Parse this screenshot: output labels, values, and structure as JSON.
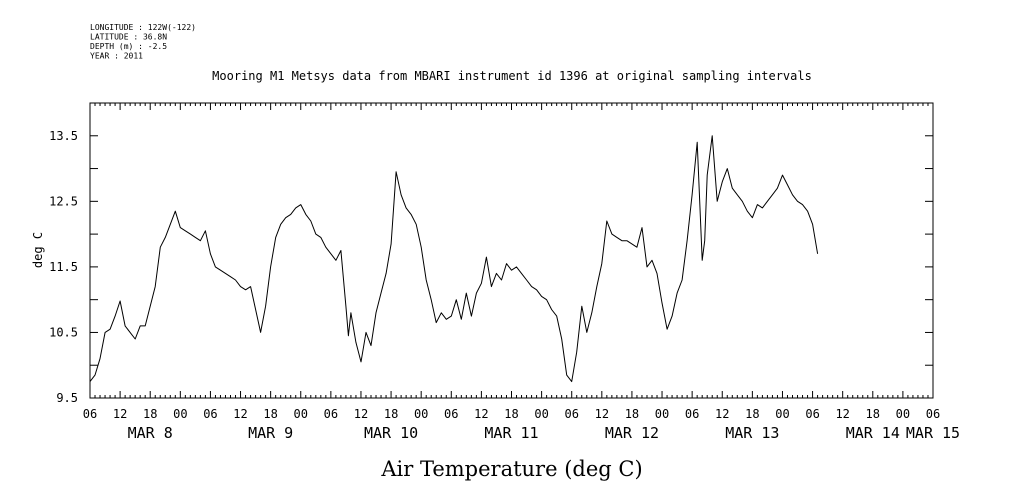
{
  "header": {
    "meta_lines": [
      "LONGITUDE : 122W(-122)",
      "LATITUDE : 36.8N",
      "DEPTH (m) : -2.5",
      "YEAR : 2011"
    ],
    "title": "Mooring M1 Metsys data from MBARI instrument id 1396 at original sampling intervals",
    "xlabel": "Air Temperature (deg C)"
  },
  "chart_data": {
    "type": "line",
    "title": "Mooring M1 Metsys data from MBARI instrument id 1396 at original sampling intervals",
    "xlabel": "Air Temperature (deg C)",
    "ylabel": "deg C",
    "x_unit": "hours since MAR 8 00:00",
    "xlim": [
      -18,
      150
    ],
    "ylim": [
      9.5,
      14.0
    ],
    "y_ticks": [
      "9.5",
      "10.5",
      "11.5",
      "12.5",
      "13.5"
    ],
    "x_hour_ticks": [
      {
        "x": -18,
        "label": "06"
      },
      {
        "x": -12,
        "label": "12"
      },
      {
        "x": -6,
        "label": "18"
      },
      {
        "x": 0,
        "label": "00"
      },
      {
        "x": 6,
        "label": "06"
      },
      {
        "x": 12,
        "label": "12"
      },
      {
        "x": 18,
        "label": "18"
      },
      {
        "x": 24,
        "label": "00"
      },
      {
        "x": 30,
        "label": "06"
      },
      {
        "x": 36,
        "label": "12"
      },
      {
        "x": 42,
        "label": "18"
      },
      {
        "x": 48,
        "label": "00"
      },
      {
        "x": 54,
        "label": "06"
      },
      {
        "x": 60,
        "label": "12"
      },
      {
        "x": 66,
        "label": "18"
      },
      {
        "x": 72,
        "label": "00"
      },
      {
        "x": 78,
        "label": "06"
      },
      {
        "x": 84,
        "label": "12"
      },
      {
        "x": 90,
        "label": "18"
      },
      {
        "x": 96,
        "label": "00"
      },
      {
        "x": 102,
        "label": "06"
      },
      {
        "x": 108,
        "label": "12"
      },
      {
        "x": 114,
        "label": "18"
      },
      {
        "x": 120,
        "label": "00"
      },
      {
        "x": 126,
        "label": "06"
      },
      {
        "x": 132,
        "label": "12"
      },
      {
        "x": 138,
        "label": "18"
      },
      {
        "x": 144,
        "label": "00"
      },
      {
        "x": 150,
        "label": "06"
      }
    ],
    "x_day_labels": [
      {
        "x": -6,
        "label": "MAR  8"
      },
      {
        "x": 18,
        "label": "MAR  9"
      },
      {
        "x": 42,
        "label": "MAR 10"
      },
      {
        "x": 66,
        "label": "MAR 11"
      },
      {
        "x": 90,
        "label": "MAR 12"
      },
      {
        "x": 114,
        "label": "MAR 13"
      },
      {
        "x": 138,
        "label": "MAR 14"
      },
      {
        "x": 150,
        "label": "MAR 15"
      }
    ],
    "series": [
      {
        "color": "#000000",
        "points": [
          [
            -18,
            9.75
          ],
          [
            -17,
            9.85
          ],
          [
            -16,
            10.1
          ],
          [
            -15,
            10.5
          ],
          [
            -14,
            10.55
          ],
          [
            -13,
            10.75
          ],
          [
            -12,
            10.98
          ],
          [
            -11,
            10.6
          ],
          [
            -10,
            10.5
          ],
          [
            -9,
            10.4
          ],
          [
            -8,
            10.6
          ],
          [
            -7,
            10.6
          ],
          [
            -6,
            10.9
          ],
          [
            -5,
            11.2
          ],
          [
            -4,
            11.8
          ],
          [
            -3,
            11.95
          ],
          [
            -2,
            12.15
          ],
          [
            -1,
            12.35
          ],
          [
            0,
            12.1
          ],
          [
            1,
            12.05
          ],
          [
            2,
            12.0
          ],
          [
            3,
            11.95
          ],
          [
            4,
            11.9
          ],
          [
            5,
            12.05
          ],
          [
            6,
            11.7
          ],
          [
            7,
            11.5
          ],
          [
            8,
            11.45
          ],
          [
            9,
            11.4
          ],
          [
            10,
            11.35
          ],
          [
            11,
            11.3
          ],
          [
            12,
            11.2
          ],
          [
            13,
            11.15
          ],
          [
            14,
            11.2
          ],
          [
            15,
            10.85
          ],
          [
            16,
            10.5
          ],
          [
            17,
            10.9
          ],
          [
            18,
            11.5
          ],
          [
            19,
            11.95
          ],
          [
            20,
            12.15
          ],
          [
            21,
            12.25
          ],
          [
            22,
            12.3
          ],
          [
            23,
            12.4
          ],
          [
            24,
            12.45
          ],
          [
            25,
            12.3
          ],
          [
            26,
            12.2
          ],
          [
            27,
            12.0
          ],
          [
            28,
            11.95
          ],
          [
            29,
            11.8
          ],
          [
            30,
            11.7
          ],
          [
            31,
            11.6
          ],
          [
            32,
            11.75
          ],
          [
            33,
            10.9
          ],
          [
            33.5,
            10.45
          ],
          [
            34,
            10.8
          ],
          [
            35,
            10.35
          ],
          [
            36,
            10.05
          ],
          [
            37,
            10.5
          ],
          [
            38,
            10.3
          ],
          [
            39,
            10.8
          ],
          [
            40,
            11.1
          ],
          [
            41,
            11.4
          ],
          [
            42,
            11.85
          ],
          [
            43,
            12.95
          ],
          [
            44,
            12.6
          ],
          [
            45,
            12.4
          ],
          [
            46,
            12.3
          ],
          [
            47,
            12.15
          ],
          [
            48,
            11.8
          ],
          [
            49,
            11.3
          ],
          [
            50,
            11.0
          ],
          [
            51,
            10.65
          ],
          [
            52,
            10.8
          ],
          [
            53,
            10.7
          ],
          [
            54,
            10.75
          ],
          [
            55,
            11.0
          ],
          [
            56,
            10.7
          ],
          [
            57,
            11.1
          ],
          [
            58,
            10.75
          ],
          [
            59,
            11.1
          ],
          [
            60,
            11.25
          ],
          [
            61,
            11.65
          ],
          [
            62,
            11.2
          ],
          [
            63,
            11.4
          ],
          [
            64,
            11.3
          ],
          [
            65,
            11.55
          ],
          [
            66,
            11.45
          ],
          [
            67,
            11.5
          ],
          [
            68,
            11.4
          ],
          [
            69,
            11.3
          ],
          [
            70,
            11.2
          ],
          [
            71,
            11.15
          ],
          [
            72,
            11.05
          ],
          [
            73,
            11.0
          ],
          [
            74,
            10.85
          ],
          [
            75,
            10.75
          ],
          [
            76,
            10.4
          ],
          [
            77,
            9.85
          ],
          [
            78,
            9.75
          ],
          [
            79,
            10.2
          ],
          [
            80,
            10.9
          ],
          [
            81,
            10.5
          ],
          [
            82,
            10.8
          ],
          [
            83,
            11.2
          ],
          [
            84,
            11.55
          ],
          [
            85,
            12.2
          ],
          [
            86,
            12.0
          ],
          [
            87,
            11.95
          ],
          [
            88,
            11.9
          ],
          [
            89,
            11.9
          ],
          [
            90,
            11.85
          ],
          [
            91,
            11.8
          ],
          [
            92,
            12.1
          ],
          [
            93,
            11.5
          ],
          [
            94,
            11.6
          ],
          [
            95,
            11.4
          ],
          [
            96,
            10.95
          ],
          [
            97,
            10.55
          ],
          [
            98,
            10.75
          ],
          [
            99,
            11.1
          ],
          [
            100,
            11.3
          ],
          [
            101,
            11.9
          ],
          [
            102,
            12.6
          ],
          [
            103,
            13.4
          ],
          [
            104,
            11.6
          ],
          [
            104.5,
            11.9
          ],
          [
            105,
            12.9
          ],
          [
            106,
            13.5
          ],
          [
            107,
            12.5
          ],
          [
            108,
            12.8
          ],
          [
            109,
            13.0
          ],
          [
            110,
            12.7
          ],
          [
            111,
            12.6
          ],
          [
            112,
            12.5
          ],
          [
            113,
            12.35
          ],
          [
            114,
            12.25
          ],
          [
            115,
            12.45
          ],
          [
            116,
            12.4
          ],
          [
            117,
            12.5
          ],
          [
            118,
            12.6
          ],
          [
            119,
            12.7
          ],
          [
            120,
            12.9
          ],
          [
            121,
            12.75
          ],
          [
            122,
            12.6
          ],
          [
            123,
            12.5
          ],
          [
            124,
            12.45
          ],
          [
            125,
            12.35
          ],
          [
            126,
            12.15
          ],
          [
            127,
            11.7
          ]
        ]
      }
    ],
    "grid": false,
    "legend": "none"
  }
}
